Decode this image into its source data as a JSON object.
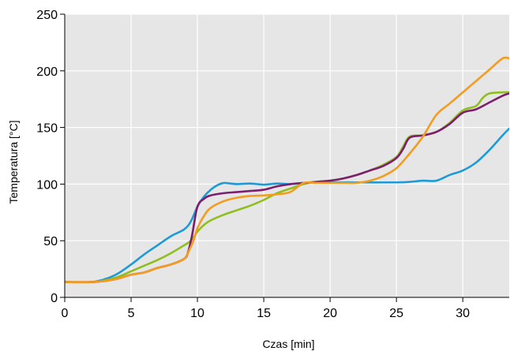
{
  "chart_data": {
    "type": "line",
    "title": "",
    "xlabel": "Czas [min]",
    "ylabel": "Temperatura [°C]",
    "xlim": [
      0,
      33.5
    ],
    "ylim": [
      0,
      250
    ],
    "xticks": [
      0,
      5,
      10,
      15,
      20,
      25,
      30
    ],
    "yticks": [
      0,
      50,
      100,
      150,
      200,
      250
    ],
    "grid": true,
    "background": "#e6e6e6",
    "grid_color": "#ffffff",
    "series": [
      {
        "color": "#1e9bd7",
        "points": [
          [
            0,
            13.5
          ],
          [
            2,
            13.5
          ],
          [
            3,
            16
          ],
          [
            4,
            21
          ],
          [
            5,
            29
          ],
          [
            6,
            38
          ],
          [
            7,
            46
          ],
          [
            8,
            54
          ],
          [
            9,
            60
          ],
          [
            9.5,
            67
          ],
          [
            10,
            80
          ],
          [
            10.5,
            89
          ],
          [
            11,
            95
          ],
          [
            11.5,
            99
          ],
          [
            12,
            101
          ],
          [
            12.5,
            100.5
          ],
          [
            13,
            100
          ],
          [
            14,
            100.5
          ],
          [
            15,
            99.5
          ],
          [
            16,
            100.5
          ],
          [
            17,
            100
          ],
          [
            18,
            101
          ],
          [
            20,
            101.5
          ],
          [
            22,
            101.5
          ],
          [
            25,
            101.5
          ],
          [
            26,
            102
          ],
          [
            27,
            103
          ],
          [
            28,
            103
          ],
          [
            29,
            108
          ],
          [
            30,
            112
          ],
          [
            31,
            119
          ],
          [
            32,
            130
          ],
          [
            33,
            143
          ],
          [
            33.5,
            149
          ]
        ]
      },
      {
        "color": "#8fbe1f",
        "points": [
          [
            0,
            13.5
          ],
          [
            2,
            13.5
          ],
          [
            3,
            15
          ],
          [
            4,
            18
          ],
          [
            5,
            23
          ],
          [
            6,
            28
          ],
          [
            7,
            33
          ],
          [
            8,
            39
          ],
          [
            9,
            46
          ],
          [
            9.5,
            50
          ],
          [
            10,
            58
          ],
          [
            10.5,
            64
          ],
          [
            11,
            68
          ],
          [
            12,
            73
          ],
          [
            13,
            77
          ],
          [
            14,
            81
          ],
          [
            15,
            86
          ],
          [
            16,
            92
          ],
          [
            17,
            96
          ],
          [
            18,
            100
          ],
          [
            19,
            102
          ],
          [
            20,
            103
          ],
          [
            21,
            105
          ],
          [
            22,
            108
          ],
          [
            23,
            112
          ],
          [
            24,
            117
          ],
          [
            25,
            124
          ],
          [
            25.5,
            133
          ],
          [
            26,
            142
          ],
          [
            27,
            143
          ],
          [
            28,
            146
          ],
          [
            29,
            154
          ],
          [
            30,
            165
          ],
          [
            31,
            169
          ],
          [
            31.5,
            176
          ],
          [
            32,
            180
          ],
          [
            33,
            181
          ],
          [
            33.5,
            181
          ]
        ]
      },
      {
        "color": "#7b1f6e",
        "points": [
          [
            0,
            13.5
          ],
          [
            2,
            13.5
          ],
          [
            3,
            14.5
          ],
          [
            4,
            16.5
          ],
          [
            5,
            20
          ],
          [
            6,
            22
          ],
          [
            7,
            26
          ],
          [
            8,
            29
          ],
          [
            9,
            34
          ],
          [
            9.3,
            40
          ],
          [
            9.6,
            55
          ],
          [
            10,
            80
          ],
          [
            10.5,
            87
          ],
          [
            11,
            90
          ],
          [
            12,
            92
          ],
          [
            13,
            93
          ],
          [
            14,
            94
          ],
          [
            15,
            95
          ],
          [
            16,
            98
          ],
          [
            17,
            100
          ],
          [
            18,
            101
          ],
          [
            19,
            102
          ],
          [
            20,
            103
          ],
          [
            21,
            105
          ],
          [
            22,
            108
          ],
          [
            23,
            112
          ],
          [
            24,
            116
          ],
          [
            25,
            123
          ],
          [
            25.5,
            131
          ],
          [
            26,
            141
          ],
          [
            27,
            143
          ],
          [
            28,
            146
          ],
          [
            29,
            153
          ],
          [
            30,
            163
          ],
          [
            31,
            166
          ],
          [
            32,
            172
          ],
          [
            33,
            178
          ],
          [
            33.5,
            180
          ]
        ]
      },
      {
        "color": "#f39c1f",
        "points": [
          [
            0,
            13.5
          ],
          [
            2,
            13.5
          ],
          [
            3,
            14.5
          ],
          [
            4,
            16.5
          ],
          [
            5,
            20
          ],
          [
            6,
            22
          ],
          [
            7,
            26
          ],
          [
            8,
            29
          ],
          [
            9,
            34
          ],
          [
            9.4,
            42
          ],
          [
            9.7,
            50
          ],
          [
            10,
            61
          ],
          [
            10.5,
            72
          ],
          [
            11,
            79
          ],
          [
            12,
            85
          ],
          [
            13,
            88
          ],
          [
            14,
            89.5
          ],
          [
            15,
            90
          ],
          [
            16,
            91
          ],
          [
            17,
            93
          ],
          [
            18,
            101
          ],
          [
            19,
            101
          ],
          [
            20,
            101
          ],
          [
            21,
            101
          ],
          [
            22,
            101
          ],
          [
            23,
            103
          ],
          [
            24,
            107
          ],
          [
            25,
            114
          ],
          [
            26,
            127
          ],
          [
            27,
            142
          ],
          [
            28,
            161
          ],
          [
            29,
            171
          ],
          [
            30,
            181
          ],
          [
            31,
            191
          ],
          [
            32,
            201
          ],
          [
            33,
            211
          ],
          [
            33.5,
            211
          ]
        ]
      }
    ]
  }
}
